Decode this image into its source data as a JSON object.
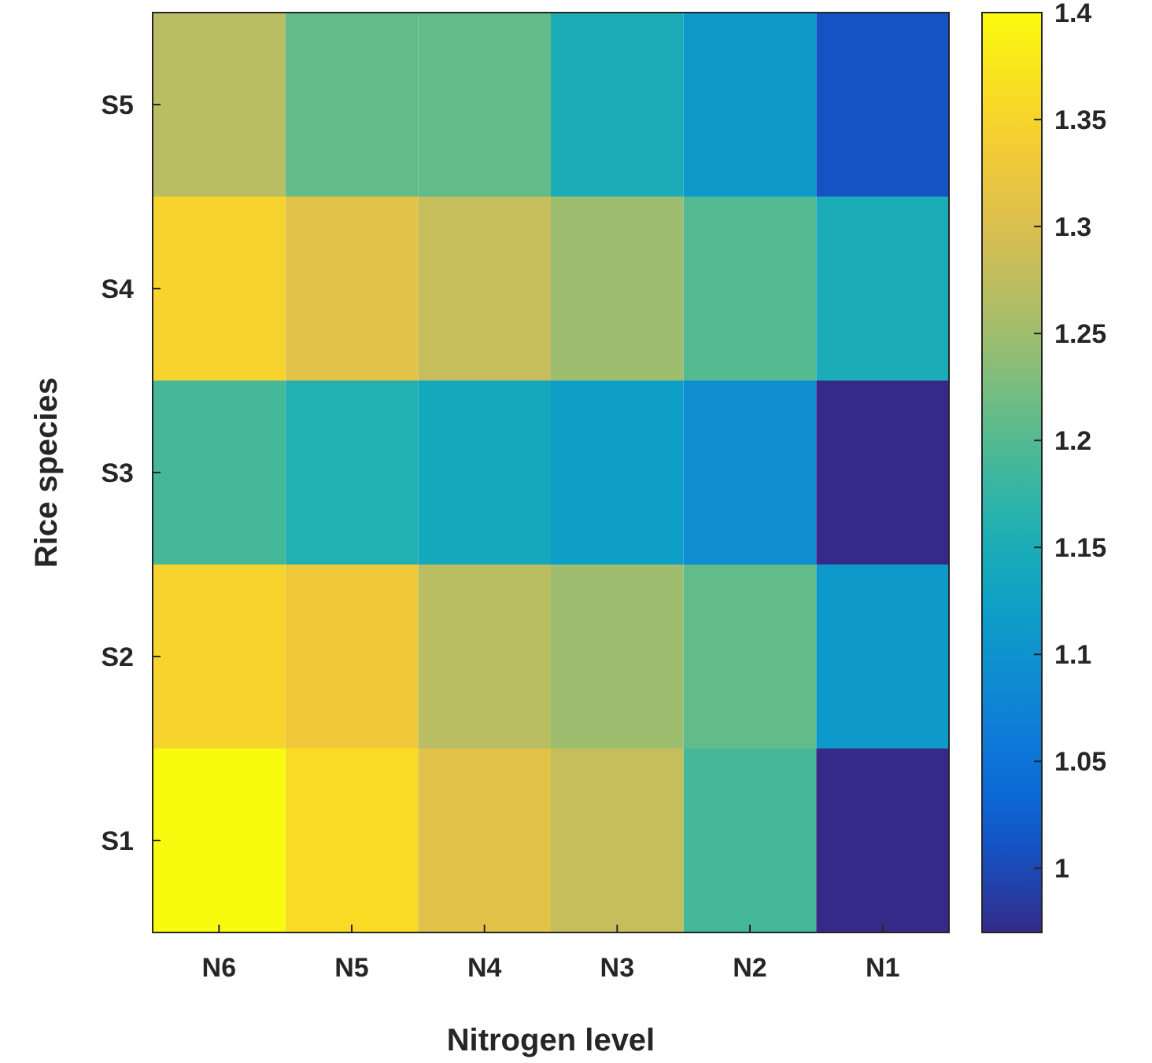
{
  "chart_data": {
    "type": "heatmap",
    "xlabel": "Nitrogen level",
    "ylabel": "Rice species",
    "categories": [
      "N6",
      "N5",
      "N4",
      "N3",
      "N2",
      "N1"
    ],
    "y_categories": [
      "S5",
      "S4",
      "S3",
      "S2",
      "S1"
    ],
    "cells": [
      [
        1.27,
        1.21,
        1.21,
        1.15,
        1.11,
        1.01
      ],
      [
        1.35,
        1.31,
        1.28,
        1.25,
        1.2,
        1.15
      ],
      [
        1.19,
        1.16,
        1.14,
        1.12,
        1.09,
        0.97
      ],
      [
        1.35,
        1.33,
        1.27,
        1.25,
        1.21,
        1.11
      ],
      [
        1.4,
        1.36,
        1.31,
        1.28,
        1.19,
        0.97
      ]
    ],
    "clim": [
      0.97,
      1.4
    ],
    "cticks": [
      1,
      1.05,
      1.1,
      1.15,
      1.2,
      1.25,
      1.3,
      1.35,
      1.4
    ]
  }
}
